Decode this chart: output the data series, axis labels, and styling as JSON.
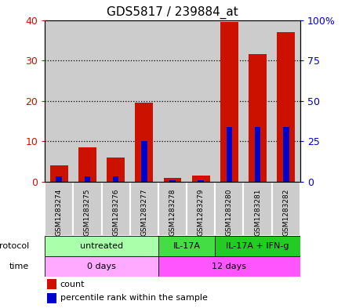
{
  "title": "GDS5817 / 239884_at",
  "samples": [
    "GSM1283274",
    "GSM1283275",
    "GSM1283276",
    "GSM1283277",
    "GSM1283278",
    "GSM1283279",
    "GSM1283280",
    "GSM1283281",
    "GSM1283282"
  ],
  "red_values": [
    4.0,
    8.5,
    6.0,
    19.5,
    1.0,
    1.5,
    39.5,
    31.5,
    37.0
  ],
  "blue_values_left": [
    1.4,
    1.4,
    1.4,
    10.0,
    0.4,
    0.4,
    13.5,
    13.5,
    13.5
  ],
  "ylim_left": [
    0,
    40
  ],
  "ylim_right": [
    0,
    100
  ],
  "yticks_left": [
    0,
    10,
    20,
    30,
    40
  ],
  "yticks_right": [
    0,
    25,
    50,
    75,
    100
  ],
  "left_tick_labels": [
    "0",
    "10",
    "20",
    "30",
    "40"
  ],
  "right_tick_labels": [
    "0",
    "25",
    "50",
    "75",
    "100%"
  ],
  "red_color": "#cc1100",
  "blue_color": "#0000cc",
  "sample_bg": "#cccccc",
  "proto_untreated_color": "#aaffaa",
  "proto_il17a_color": "#44dd44",
  "proto_il17a_ifng_color": "#22cc22",
  "time_0days_color": "#ffaaff",
  "time_12days_color": "#ff55ff",
  "legend_count_label": "count",
  "legend_pct_label": "percentile rank within the sample",
  "bar_width": 0.35
}
